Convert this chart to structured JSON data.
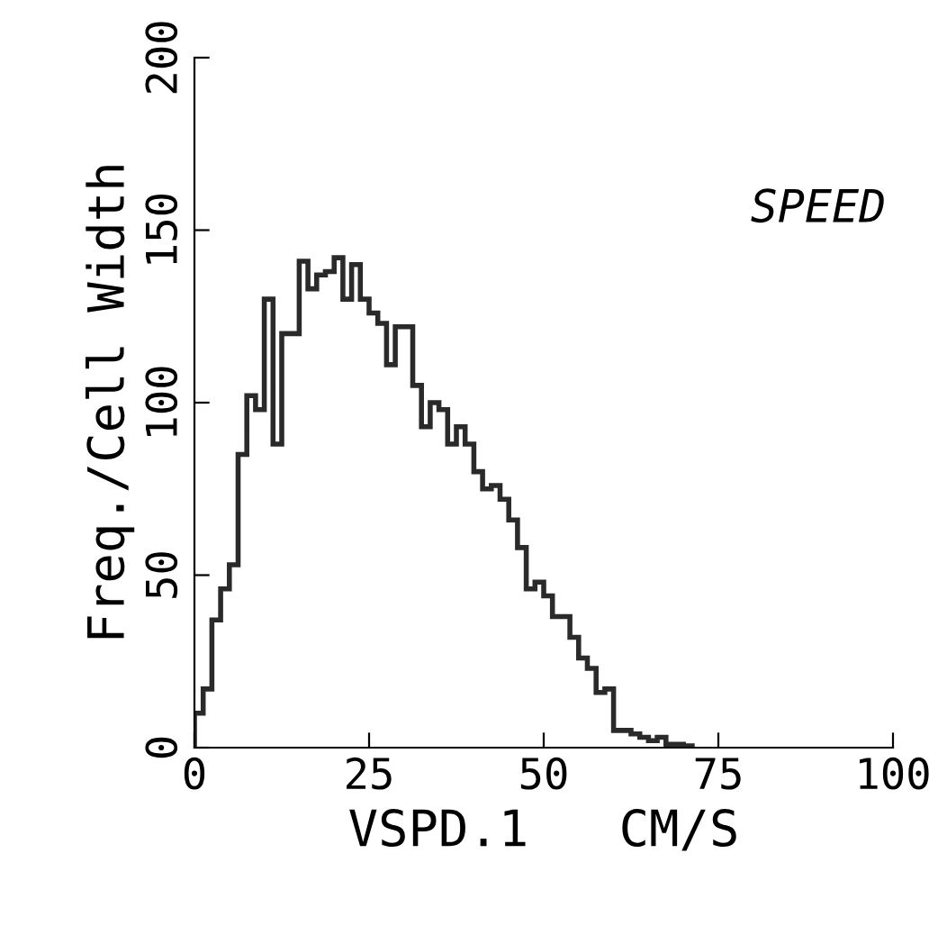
{
  "chart_data": {
    "type": "histogram",
    "xlabel": "VSPD.1   CM/S",
    "ylabel": "Freq./Cell Width",
    "annotations": [
      "SPEED"
    ],
    "color": "#2a2a2a",
    "bins": [
      0,
      1.25,
      2.5,
      3.75,
      5,
      6.25,
      7.5,
      8.75,
      10,
      11.25,
      12.5,
      13.75,
      15,
      16.25,
      17.5,
      18.75,
      20,
      21.25,
      22.5,
      23.75,
      25,
      26.25,
      27.5,
      28.75,
      30,
      31.25,
      32.5,
      33.75,
      35,
      36.25,
      37.5,
      38.75,
      40,
      41.25,
      42.5,
      43.75,
      45,
      46.25,
      47.5,
      48.75,
      50,
      51.25,
      52.5,
      53.75,
      55,
      56.25,
      57.5,
      58.75,
      60,
      61.25,
      62.5,
      63.75,
      65,
      66.25,
      67.5,
      68.75,
      70,
      71.25
    ],
    "values": [
      10,
      17,
      37,
      46,
      53,
      85,
      102,
      98,
      130,
      88,
      120,
      120,
      141,
      133,
      137,
      138,
      142,
      130,
      140,
      130,
      126,
      123,
      111,
      122,
      122,
      105,
      93,
      100,
      98,
      88,
      93,
      88,
      80,
      75,
      76,
      72,
      66,
      58,
      46,
      48,
      44,
      38,
      38,
      32,
      26,
      23,
      16,
      17,
      5,
      5,
      4,
      3,
      2,
      3,
      1,
      1,
      0.5
    ],
    "xlim": [
      0,
      100
    ],
    "xticks": [
      0,
      25,
      50,
      75,
      100
    ],
    "ylim": [
      0,
      200
    ],
    "yticks": [
      0,
      50,
      100,
      150,
      200
    ],
    "grid": false,
    "legend": false
  }
}
